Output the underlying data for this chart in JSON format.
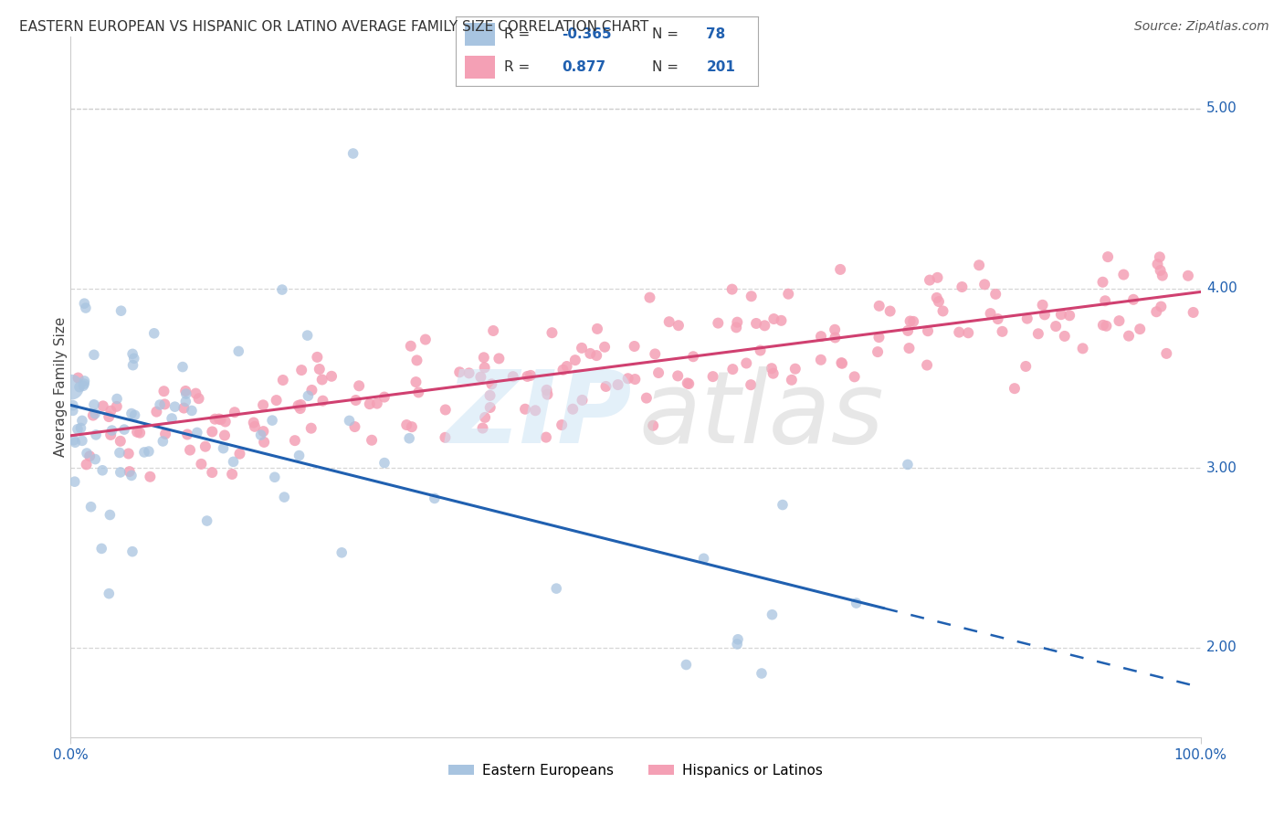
{
  "title": "EASTERN EUROPEAN VS HISPANIC OR LATINO AVERAGE FAMILY SIZE CORRELATION CHART",
  "source": "Source: ZipAtlas.com",
  "ylabel": "Average Family Size",
  "right_yticks": [
    2.0,
    3.0,
    4.0,
    5.0
  ],
  "legend": {
    "blue_R": "-0.365",
    "blue_N": "78",
    "pink_R": "0.877",
    "pink_N": "201"
  },
  "blue_color": "#a8c4e0",
  "pink_color": "#f4a0b5",
  "blue_line_color": "#2060b0",
  "pink_line_color": "#d04070",
  "blue_trend_y0": 3.35,
  "blue_trend_y1": 1.78,
  "blue_solid_end_x": 72,
  "pink_trend_y0": 3.18,
  "pink_trend_y1": 3.98,
  "xlim": [
    0,
    100
  ],
  "ylim": [
    1.5,
    5.4
  ],
  "background_color": "#ffffff",
  "grid_color": "#cccccc",
  "bottom_legend_labels": [
    "Eastern Europeans",
    "Hispanics or Latinos"
  ]
}
